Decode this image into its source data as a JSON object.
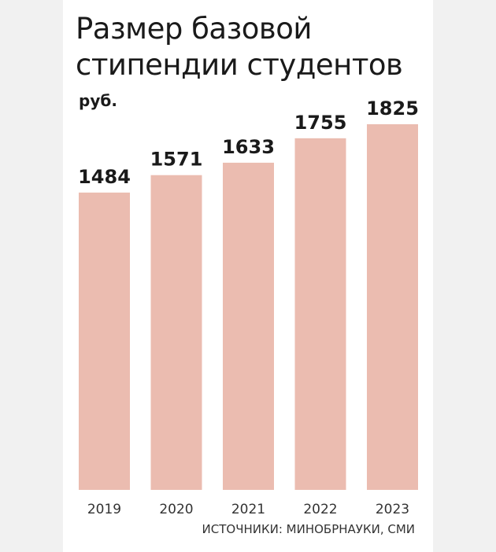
{
  "chart_data": {
    "type": "bar",
    "title_lines": [
      "Размер базовой",
      "стипендии студентов"
    ],
    "unit": "руб.",
    "categories": [
      "2019",
      "2020",
      "2021",
      "2022",
      "2023"
    ],
    "values": [
      1484,
      1571,
      1633,
      1755,
      1825
    ],
    "ylim": [
      0,
      1825
    ],
    "grid": false,
    "legend": "none",
    "bar_color": "#ebbcb0",
    "source": "ИСТОЧНИКИ: МИНОБРНАУКИ, СМИ"
  }
}
